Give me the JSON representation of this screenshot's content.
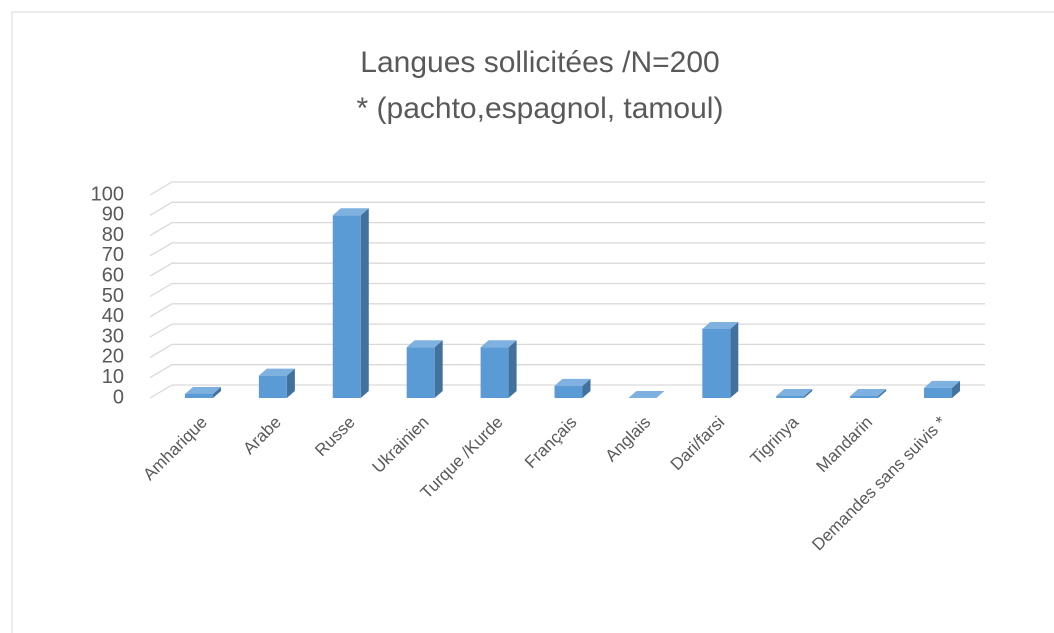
{
  "chart_data": {
    "type": "bar3d",
    "title": "Langues sollicitées /N=200",
    "subtitle": "* (pachto,espagnol, tamoul)",
    "categories": [
      "Amharique",
      "Arabe",
      "Russe",
      "Ukrainien",
      "Turque /Kurde",
      "Français",
      "Anglais",
      "Dari/farsi",
      "Tigrinya",
      "Mandarin",
      "Demandes sans suivis *"
    ],
    "values": [
      2,
      11,
      90,
      25,
      25,
      6,
      0,
      34,
      1,
      1,
      5
    ],
    "color": "#5b9bd5",
    "ylim": [
      0,
      100
    ],
    "yticks": [
      0,
      10,
      20,
      30,
      40,
      50,
      60,
      70,
      80,
      90,
      100
    ],
    "grid": true
  }
}
